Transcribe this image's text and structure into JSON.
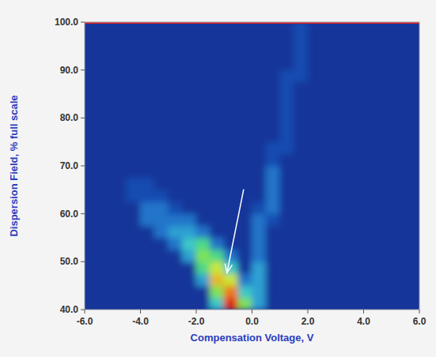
{
  "chart_data": {
    "type": "heatmap",
    "x_label": "Compensation Voltage, V",
    "y_label": "Dispersion Field, % full scale",
    "xlim": [
      -6,
      6
    ],
    "ylim": [
      40,
      100
    ],
    "xticks": [
      {
        "value": -6,
        "label": "-6.0"
      },
      {
        "value": -4,
        "label": "-4.0"
      },
      {
        "value": -2,
        "label": "-2.0"
      },
      {
        "value": 0,
        "label": "0.0"
      },
      {
        "value": 2,
        "label": "2.0"
      },
      {
        "value": 4,
        "label": "4.0"
      },
      {
        "value": 6,
        "label": "6.0"
      }
    ],
    "yticks": [
      {
        "value": 40,
        "label": "40.0"
      },
      {
        "value": 50,
        "label": "50.0"
      },
      {
        "value": 60,
        "label": "60.0"
      },
      {
        "value": 70,
        "label": "70.0"
      },
      {
        "value": 80,
        "label": "80.0"
      },
      {
        "value": 90,
        "label": "90.0"
      },
      {
        "value": 100,
        "label": "100.0"
      }
    ],
    "x": [
      -5.75,
      -5.25,
      -4.75,
      -4.25,
      -3.75,
      -3.25,
      -2.75,
      -2.25,
      -1.75,
      -1.25,
      -0.75,
      -0.25,
      0.25,
      0.75,
      1.25,
      1.75,
      2.25,
      2.75,
      3.25,
      3.75,
      4.25,
      4.75,
      5.25,
      5.75
    ],
    "y": [
      41.25,
      43.75,
      46.25,
      48.75,
      51.25,
      53.75,
      56.25,
      58.75,
      61.25,
      63.75,
      66.25,
      68.75,
      71.25,
      73.75,
      76.25,
      78.75,
      81.25,
      83.75,
      86.25,
      88.75,
      91.25,
      93.75,
      96.25,
      98.75
    ],
    "zlim": [
      0,
      10
    ],
    "cells": [
      [
        0,
        0,
        0,
        0,
        0,
        0,
        0,
        0,
        0,
        4,
        10,
        6,
        3,
        0,
        0,
        0,
        0,
        0,
        0,
        0,
        0,
        0,
        0,
        0
      ],
      [
        0,
        0,
        0,
        0,
        0,
        0,
        0,
        0,
        0,
        6,
        9,
        4,
        3,
        0,
        0,
        0,
        0,
        0,
        0,
        0,
        0,
        0,
        0,
        0
      ],
      [
        0,
        0,
        0,
        0,
        0,
        0,
        0,
        0,
        3,
        8,
        7,
        2,
        3,
        0,
        0,
        0,
        0,
        0,
        0,
        0,
        0,
        0,
        0,
        0
      ],
      [
        0,
        0,
        0,
        0,
        0,
        0,
        0,
        0,
        5,
        7,
        4,
        0,
        3,
        0,
        0,
        0,
        0,
        0,
        0,
        0,
        0,
        0,
        0,
        0
      ],
      [
        0,
        0,
        0,
        0,
        0,
        0,
        0,
        3,
        6,
        5,
        2,
        0,
        2,
        0,
        0,
        0,
        0,
        0,
        0,
        0,
        0,
        0,
        0,
        0
      ],
      [
        0,
        0,
        0,
        0,
        0,
        0,
        2,
        4,
        5,
        2,
        0,
        0,
        2,
        0,
        0,
        0,
        0,
        0,
        0,
        0,
        0,
        0,
        0,
        0
      ],
      [
        0,
        0,
        0,
        0,
        0,
        2,
        3,
        3,
        2,
        0,
        0,
        0,
        2,
        0,
        0,
        0,
        0,
        0,
        0,
        0,
        0,
        0,
        0,
        0
      ],
      [
        0,
        0,
        0,
        0,
        2,
        2,
        2,
        2,
        0,
        0,
        0,
        0,
        2,
        1,
        0,
        0,
        0,
        0,
        0,
        0,
        0,
        0,
        0,
        0
      ],
      [
        0,
        0,
        0,
        0,
        2,
        2,
        1,
        0,
        0,
        0,
        0,
        0,
        1,
        2,
        0,
        0,
        0,
        0,
        0,
        0,
        0,
        0,
        0,
        0
      ],
      [
        0,
        0,
        0,
        1,
        1,
        1,
        0,
        0,
        0,
        0,
        0,
        0,
        0,
        2,
        0,
        0,
        0,
        0,
        0,
        0,
        0,
        0,
        0,
        0
      ],
      [
        0,
        0,
        0,
        1,
        1,
        0,
        0,
        0,
        0,
        0,
        0,
        0,
        0,
        2,
        0,
        0,
        0,
        0,
        0,
        0,
        0,
        0,
        0,
        0
      ],
      [
        0,
        0,
        0,
        0,
        0,
        0,
        0,
        0,
        0,
        0,
        0,
        0,
        0,
        2,
        0,
        0,
        0,
        0,
        0,
        0,
        0,
        0,
        0,
        0
      ],
      [
        0,
        0,
        0,
        0,
        0,
        0,
        0,
        0,
        0,
        0,
        0,
        0,
        0,
        1,
        0,
        0,
        0,
        0,
        0,
        0,
        0,
        0,
        0,
        0
      ],
      [
        0,
        0,
        0,
        0,
        0,
        0,
        0,
        0,
        0,
        0,
        0,
        0,
        0,
        1,
        1,
        0,
        0,
        0,
        0,
        0,
        0,
        0,
        0,
        0
      ],
      [
        0,
        0,
        0,
        0,
        0,
        0,
        0,
        0,
        0,
        0,
        0,
        0,
        0,
        0,
        1,
        0,
        0,
        0,
        0,
        0,
        0,
        0,
        0,
        0
      ],
      [
        0,
        0,
        0,
        0,
        0,
        0,
        0,
        0,
        0,
        0,
        0,
        0,
        0,
        0,
        1,
        0,
        0,
        0,
        0,
        0,
        0,
        0,
        0,
        0
      ],
      [
        0,
        0,
        0,
        0,
        0,
        0,
        0,
        0,
        0,
        0,
        0,
        0,
        0,
        0,
        1,
        0,
        0,
        0,
        0,
        0,
        0,
        0,
        0,
        0
      ],
      [
        0,
        0,
        0,
        0,
        0,
        0,
        0,
        0,
        0,
        0,
        0,
        0,
        0,
        0,
        1,
        0,
        0,
        0,
        0,
        0,
        0,
        0,
        0,
        0
      ],
      [
        0,
        0,
        0,
        0,
        0,
        0,
        0,
        0,
        0,
        0,
        0,
        0,
        0,
        0,
        1,
        0,
        0,
        0,
        0,
        0,
        0,
        0,
        0,
        0
      ],
      [
        0,
        0,
        0,
        0,
        0,
        0,
        0,
        0,
        0,
        0,
        0,
        0,
        0,
        0,
        1,
        1,
        0,
        0,
        0,
        0,
        0,
        0,
        0,
        0
      ],
      [
        0,
        0,
        0,
        0,
        0,
        0,
        0,
        0,
        0,
        0,
        0,
        0,
        0,
        0,
        0,
        1,
        0,
        0,
        0,
        0,
        0,
        0,
        0,
        0
      ],
      [
        0,
        0,
        0,
        0,
        0,
        0,
        0,
        0,
        0,
        0,
        0,
        0,
        0,
        0,
        0,
        1,
        0,
        0,
        0,
        0,
        0,
        0,
        0,
        0
      ],
      [
        0,
        0,
        0,
        0,
        0,
        0,
        0,
        0,
        0,
        0,
        0,
        0,
        0,
        0,
        0,
        1,
        0,
        0,
        0,
        0,
        0,
        0,
        0,
        0
      ],
      [
        0,
        0,
        0,
        0,
        0,
        0,
        0,
        0,
        0,
        0,
        0,
        0,
        0,
        0,
        0,
        1,
        0,
        0,
        0,
        0,
        0,
        0,
        0,
        0
      ]
    ]
  }
}
